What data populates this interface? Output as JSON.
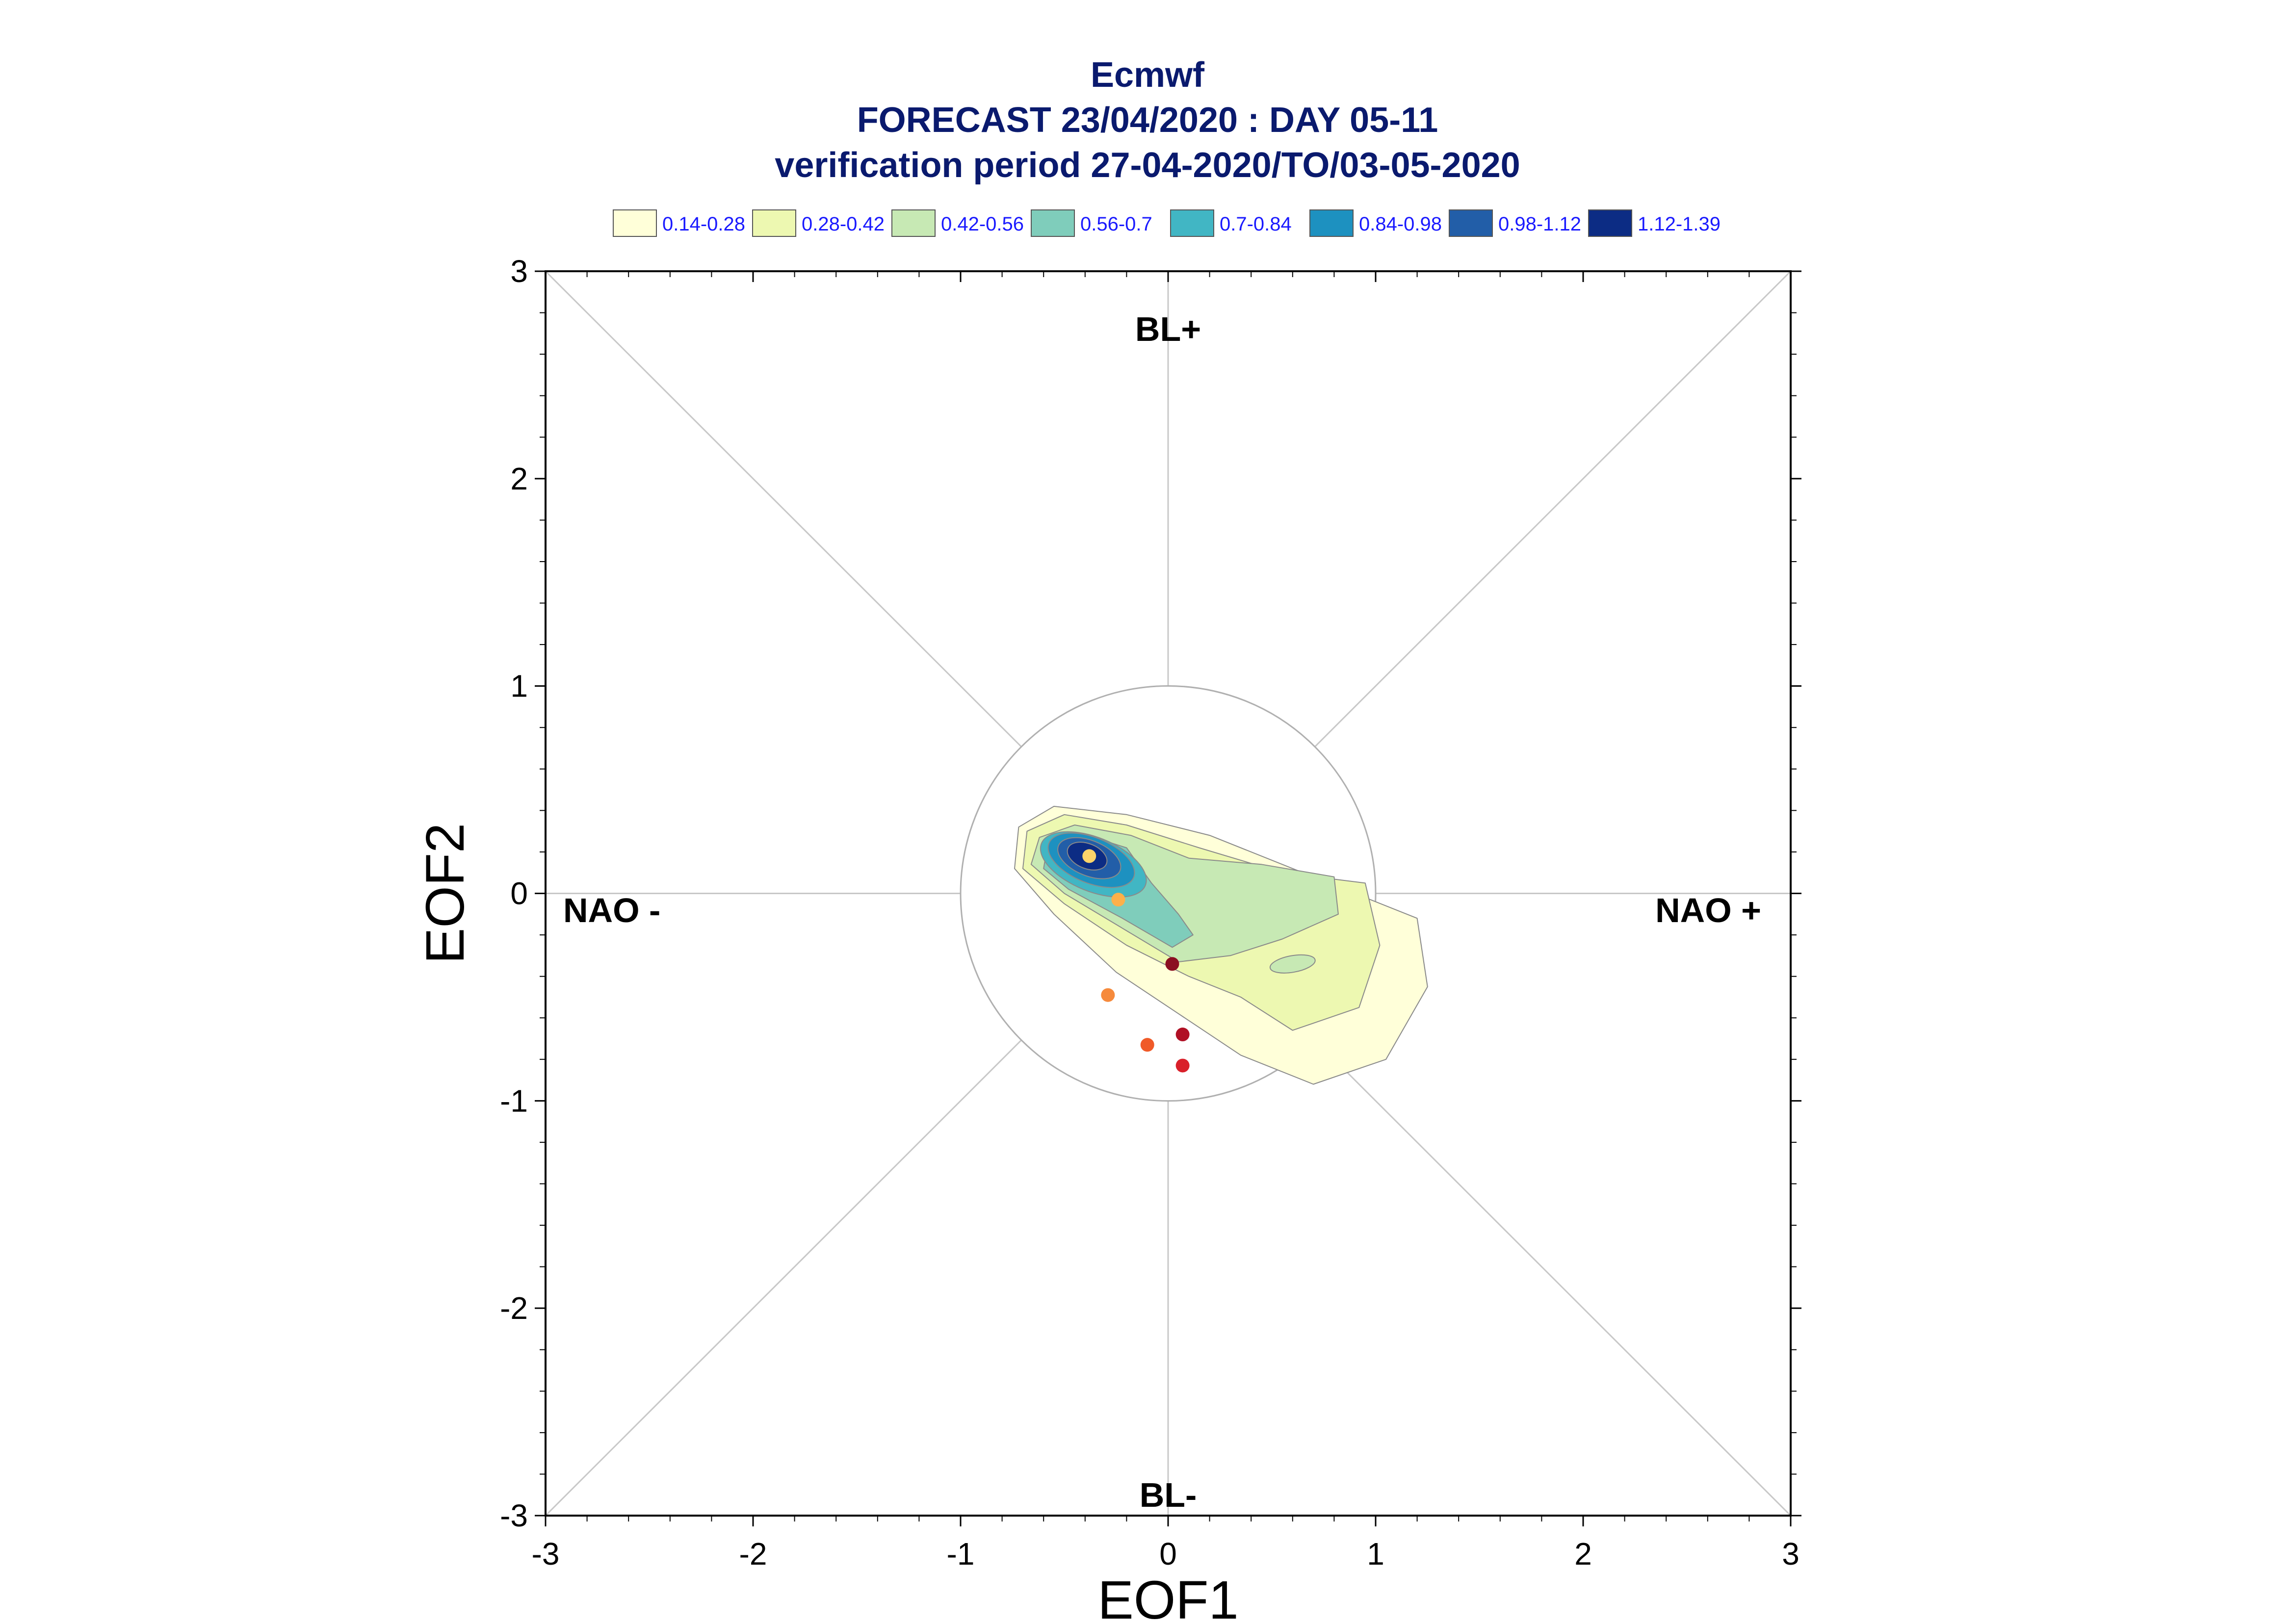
{
  "title": {
    "line1": "Ecmwf",
    "line2": "FORECAST 23/04/2020 : DAY 05-11",
    "line3": "verification period 27-04-2020/TO/03-05-2020"
  },
  "chart_data": {
    "type": "contour-scatter",
    "xlabel": "EOF1",
    "ylabel": "EOF2",
    "xlim": [
      -3,
      3
    ],
    "ylim": [
      -3,
      3
    ],
    "x_ticks": [
      "-3",
      "-2",
      "-1",
      "0",
      "1",
      "2",
      "3"
    ],
    "y_ticks": [
      "3",
      "2",
      "1",
      "0",
      "-1",
      "-2",
      "-3"
    ],
    "regime_labels": {
      "top": "BL+",
      "bottom": "BL-",
      "left": "NAO -",
      "right": "NAO +"
    },
    "reference_circle_radius": 1.0,
    "legend": [
      {
        "label": "0.14-0.28",
        "color": "#ffffd9"
      },
      {
        "label": "0.28-0.42",
        "color": "#edf8b1"
      },
      {
        "label": "0.42-0.56",
        "color": "#c7e9b4"
      },
      {
        "label": "0.56-0.7",
        "color": "#7fcdbb"
      },
      {
        "label": "0.7-0.84",
        "color": "#41b6c4"
      },
      {
        "label": "0.84-0.98",
        "color": "#1d91c0"
      },
      {
        "label": "0.98-1.12",
        "color": "#225ea8"
      },
      {
        "label": "1.12-1.39",
        "color": "#0c2c84"
      }
    ],
    "points": [
      {
        "x": -0.38,
        "y": 0.18,
        "color": "#fdd46a"
      },
      {
        "x": -0.24,
        "y": -0.03,
        "color": "#fdb04a"
      },
      {
        "x": 0.02,
        "y": -0.34,
        "color": "#8b0f22"
      },
      {
        "x": -0.29,
        "y": -0.49,
        "color": "#f68a3c"
      },
      {
        "x": -0.1,
        "y": -0.73,
        "color": "#f05a28"
      },
      {
        "x": 0.07,
        "y": -0.68,
        "color": "#b01025"
      },
      {
        "x": 0.07,
        "y": -0.83,
        "color": "#d9202a"
      }
    ]
  }
}
